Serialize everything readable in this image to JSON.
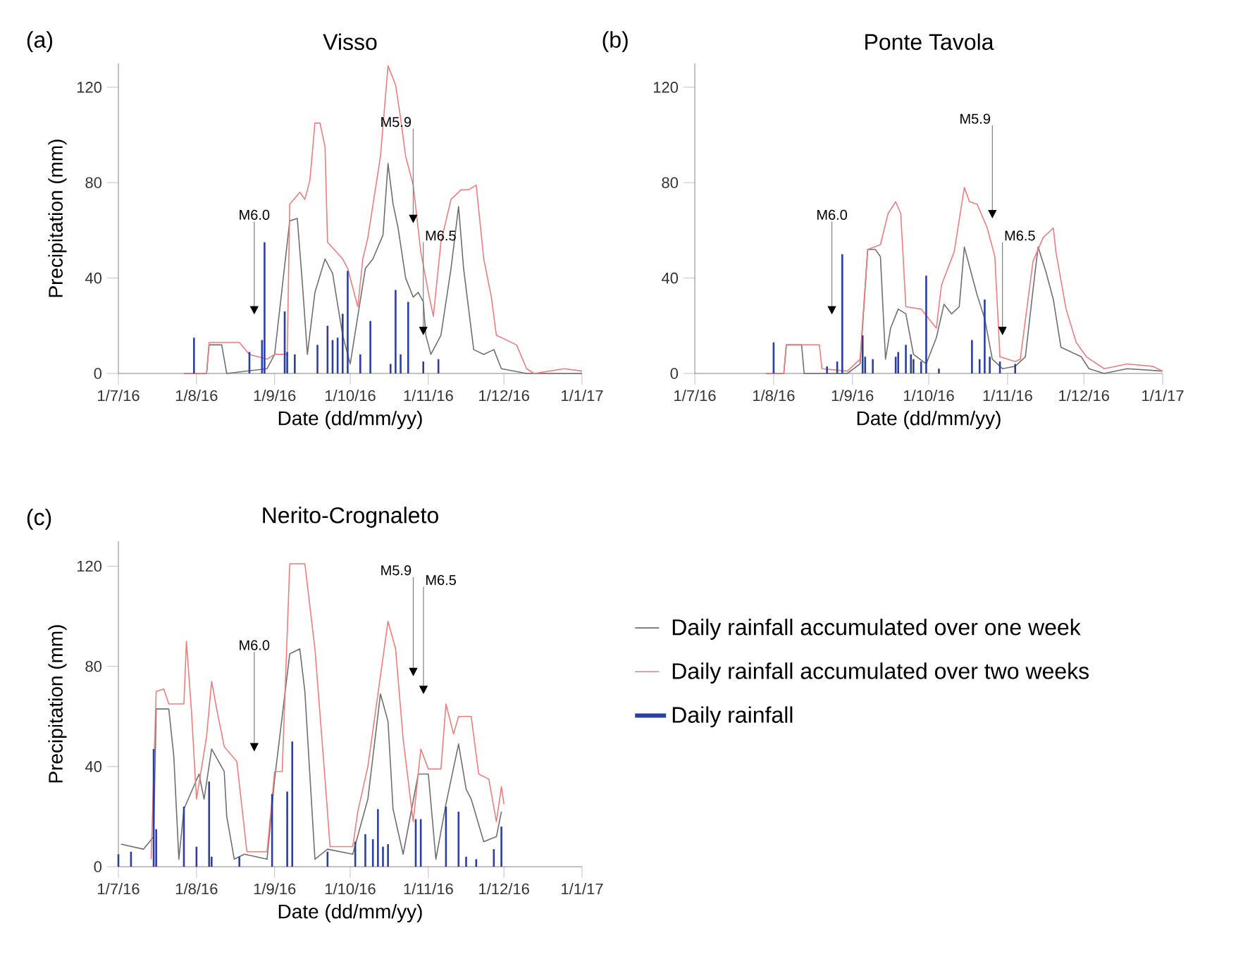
{
  "chart_data": [
    {
      "type": "line",
      "title": "Visso",
      "xlabel": "Date (dd/mm/yy)",
      "ylabel": "Precipitation (mm)",
      "annotations": [
        "(a)",
        "M6.0",
        {
          "text": "M5.9",
          "x": "2016-10-26",
          "y": 63
        },
        {
          "text": "M6.5",
          "x": "2016-10-30",
          "y": 16
        }
      ],
      "xlim": [
        "2016-07-01",
        "2017-01-01"
      ],
      "ylim": [
        0,
        130
      ],
      "yticks": [
        0,
        40,
        80,
        120
      ],
      "xticks": [
        {
          "value": "2016-07-01",
          "label": "1/7/16"
        },
        {
          "value": "2016-08-01",
          "label": "1/8/16"
        },
        {
          "value": "2016-09-01",
          "label": "1/9/16"
        },
        {
          "value": "2016-10-01",
          "label": "1/10/16"
        },
        {
          "value": "2016-11-01",
          "label": "1/11/16"
        },
        {
          "value": "2016-12-01",
          "label": "1/12/16"
        },
        {
          "value": "2017-01-01",
          "label": "1/1/17"
        }
      ],
      "series": [
        {
          "color": "#707070",
          "x": [
            "2016-07-27",
            "2016-08-05",
            "2016-08-06",
            "2016-08-11",
            "2016-08-13",
            "2016-08-29",
            "2016-09-01",
            "2016-09-07",
            "2016-09-10",
            "2016-09-12",
            "2016-09-14",
            "2016-09-17",
            "2016-09-21",
            "2016-09-24",
            "2016-09-28",
            "2016-10-01",
            "2016-10-04",
            "2016-10-07",
            "2016-10-10",
            "2016-10-14",
            "2016-10-16",
            "2016-10-18",
            "2016-10-20",
            "2016-10-23",
            "2016-10-26",
            "2016-10-28",
            "2016-10-30",
            "2016-10-31",
            "2016-11-02",
            "2016-11-06",
            "2016-11-10",
            "2016-11-13",
            "2016-11-15",
            "2016-11-19",
            "2016-11-23",
            "2016-11-27",
            "2016-11-30",
            "2016-12-10",
            "2017-01-01"
          ],
          "values": [
            0,
            0,
            12,
            12,
            0,
            2,
            8,
            64,
            65,
            38,
            8,
            34,
            48,
            42,
            16,
            4,
            24,
            44,
            48,
            58,
            88,
            71,
            61,
            40,
            32,
            34,
            30,
            16,
            8,
            16,
            44,
            70,
            44,
            10,
            8,
            10,
            2,
            0,
            0
          ]
        },
        {
          "color": "#f07c7c",
          "x": [
            "2016-07-27",
            "2016-08-05",
            "2016-08-06",
            "2016-08-18",
            "2016-08-22",
            "2016-08-29",
            "2016-09-01",
            "2016-09-06",
            "2016-09-07",
            "2016-09-11",
            "2016-09-13",
            "2016-09-15",
            "2016-09-17",
            "2016-09-19",
            "2016-09-21",
            "2016-09-22",
            "2016-09-28",
            "2016-09-30",
            "2016-10-04",
            "2016-10-06",
            "2016-10-08",
            "2016-10-13",
            "2016-10-16",
            "2016-10-19",
            "2016-10-21",
            "2016-10-23",
            "2016-10-26",
            "2016-10-29",
            "2016-11-01",
            "2016-11-03",
            "2016-11-06",
            "2016-11-10",
            "2016-11-14",
            "2016-11-17",
            "2016-11-20",
            "2016-11-23",
            "2016-11-26",
            "2016-11-28",
            "2016-12-06",
            "2016-12-10",
            "2016-12-13",
            "2016-12-25",
            "2017-01-01"
          ],
          "values": [
            0,
            0,
            13,
            13,
            8,
            6,
            8,
            8,
            71,
            76,
            73,
            81,
            105,
            105,
            95,
            55,
            48,
            44,
            28,
            48,
            57,
            91,
            129,
            121,
            107,
            91,
            79,
            51,
            34,
            24,
            55,
            73,
            77,
            77,
            79,
            48,
            32,
            16,
            12,
            2,
            0,
            2,
            1
          ]
        },
        {
          "type": "bar",
          "color": "#2a3ea6",
          "x": [
            "2016-07-31",
            "2016-08-22",
            "2016-08-27",
            "2016-08-28",
            "2016-09-05",
            "2016-09-06",
            "2016-09-09",
            "2016-09-18",
            "2016-09-22",
            "2016-09-24",
            "2016-09-26",
            "2016-09-28",
            "2016-09-30",
            "2016-10-05",
            "2016-10-09",
            "2016-10-17",
            "2016-10-19",
            "2016-10-21",
            "2016-10-24",
            "2016-10-30",
            "2016-11-05"
          ],
          "values": [
            15,
            9,
            14,
            55,
            26,
            9,
            8,
            12,
            20,
            14,
            15,
            25,
            43,
            8,
            22,
            4,
            35,
            8,
            30,
            5,
            6
          ]
        }
      ]
    },
    {
      "type": "line",
      "title": "Ponte Tavola",
      "xlabel": "Date (dd/mm/yy)",
      "annotations": [
        "(b)",
        "M6.0",
        "M5.9",
        {
          "text": "M6.5",
          "x": "2016-10-30",
          "y": 16
        }
      ],
      "xlim": [
        "2016-07-01",
        "2017-01-01"
      ],
      "ylim": [
        0,
        130
      ],
      "yticks": [
        0,
        40,
        80,
        120
      ],
      "xticks": [
        {
          "value": "2016-07-01",
          "label": "1/7/16"
        },
        {
          "value": "2016-08-01",
          "label": "1/8/16"
        },
        {
          "value": "2016-09-01",
          "label": "1/9/16"
        },
        {
          "value": "2016-10-01",
          "label": "1/10/16"
        },
        {
          "value": "2016-11-01",
          "label": "1/11/16"
        },
        {
          "value": "2016-12-01",
          "label": "1/12/16"
        },
        {
          "value": "2017-01-01",
          "label": "1/1/17"
        }
      ],
      "series": [
        {
          "color": "#707070",
          "x": [
            "2016-07-29",
            "2016-08-05",
            "2016-08-06",
            "2016-08-12",
            "2016-08-13",
            "2016-08-30",
            "2016-09-04",
            "2016-09-07",
            "2016-09-10",
            "2016-09-12",
            "2016-09-14",
            "2016-09-16",
            "2016-09-19",
            "2016-09-22",
            "2016-09-25",
            "2016-09-30",
            "2016-10-04",
            "2016-10-07",
            "2016-10-10",
            "2016-10-13",
            "2016-10-15",
            "2016-10-18",
            "2016-10-20",
            "2016-10-23",
            "2016-10-26",
            "2016-10-30",
            "2016-11-04",
            "2016-11-08",
            "2016-11-11",
            "2016-11-13",
            "2016-11-16",
            "2016-11-19",
            "2016-11-22",
            "2016-11-26",
            "2016-11-30",
            "2016-12-03",
            "2016-12-09",
            "2016-12-18",
            "2017-01-01"
          ],
          "values": [
            0,
            0,
            12,
            12,
            0,
            0,
            4,
            52,
            52,
            49,
            6,
            19,
            27,
            25,
            8,
            4,
            15,
            29,
            25,
            28,
            53,
            41,
            33,
            23,
            6,
            2,
            3,
            7,
            35,
            53,
            43,
            31,
            11,
            9,
            7,
            2,
            0,
            2,
            1
          ]
        },
        {
          "color": "#f07c7c",
          "x": [
            "2016-07-29",
            "2016-08-05",
            "2016-08-06",
            "2016-08-19",
            "2016-08-20",
            "2016-08-30",
            "2016-09-04",
            "2016-09-07",
            "2016-09-12",
            "2016-09-15",
            "2016-09-18",
            "2016-09-20",
            "2016-09-22",
            "2016-09-28",
            "2016-10-01",
            "2016-10-04",
            "2016-10-06",
            "2016-10-11",
            "2016-10-15",
            "2016-10-17",
            "2016-10-20",
            "2016-10-24",
            "2016-10-27",
            "2016-10-29",
            "2016-11-04",
            "2016-11-06",
            "2016-11-11",
            "2016-11-15",
            "2016-11-19",
            "2016-11-20",
            "2016-11-24",
            "2016-11-28",
            "2016-12-02",
            "2016-12-09",
            "2016-12-18",
            "2016-12-28",
            "2017-01-01"
          ],
          "values": [
            0,
            0,
            12,
            12,
            2,
            1,
            6,
            52,
            54,
            67,
            72,
            67,
            28,
            27,
            23,
            19,
            37,
            51,
            78,
            72,
            71,
            61,
            49,
            7,
            5,
            6,
            47,
            57,
            61,
            51,
            27,
            13,
            7,
            2,
            4,
            3,
            1
          ]
        },
        {
          "type": "bar",
          "color": "#2a3ea6",
          "x": [
            "2016-08-01",
            "2016-08-22",
            "2016-08-26",
            "2016-08-28",
            "2016-09-05",
            "2016-09-06",
            "2016-09-09",
            "2016-09-18",
            "2016-09-19",
            "2016-09-22",
            "2016-09-24",
            "2016-09-25",
            "2016-09-28",
            "2016-09-30",
            "2016-10-05",
            "2016-10-18",
            "2016-10-21",
            "2016-10-23",
            "2016-10-25",
            "2016-10-29",
            "2016-11-04"
          ],
          "values": [
            13,
            3,
            5,
            50,
            16,
            7,
            6,
            7,
            9,
            12,
            8,
            6,
            5,
            41,
            2,
            14,
            6,
            31,
            7,
            5,
            4
          ]
        }
      ]
    },
    {
      "type": "line",
      "title": "Nerito-Crognaleto",
      "xlabel": "Date (dd/mm/yy)",
      "ylabel": "Precipitation (mm)",
      "legend": "right",
      "annotations": [
        "(c)",
        "M6.0",
        "M5.9",
        "M6.5"
      ],
      "xlim": [
        "2016-07-01",
        "2017-01-01"
      ],
      "ylim": [
        0,
        130
      ],
      "yticks": [
        0,
        40,
        80,
        120
      ],
      "xticks": [
        {
          "value": "2016-07-01",
          "label": "1/7/16"
        },
        {
          "value": "2016-08-01",
          "label": "1/8/16"
        },
        {
          "value": "2016-09-01",
          "label": "1/9/16"
        },
        {
          "value": "2016-10-01",
          "label": "1/10/16"
        },
        {
          "value": "2016-11-01",
          "label": "1/11/16"
        },
        {
          "value": "2016-12-01",
          "label": "1/12/16"
        },
        {
          "value": "2017-01-01",
          "label": "1/1/17"
        }
      ],
      "series": [
        {
          "name": "Daily rainfall accumulated over one week",
          "color": "#707070",
          "x": [
            "2016-07-02",
            "2016-07-11",
            "2016-07-15",
            "2016-07-16",
            "2016-07-21",
            "2016-07-23",
            "2016-07-25",
            "2016-07-27",
            "2016-08-02",
            "2016-08-04",
            "2016-08-07",
            "2016-08-12",
            "2016-08-13",
            "2016-08-16",
            "2016-08-20",
            "2016-08-29",
            "2016-09-01",
            "2016-09-07",
            "2016-09-11",
            "2016-09-13",
            "2016-09-17",
            "2016-09-22",
            "2016-10-02",
            "2016-10-08",
            "2016-10-13",
            "2016-10-16",
            "2016-10-18",
            "2016-10-22",
            "2016-10-28",
            "2016-11-01",
            "2016-11-04",
            "2016-11-08",
            "2016-11-13",
            "2016-11-16",
            "2016-11-18",
            "2016-11-23",
            "2016-11-28",
            "2016-11-30"
          ],
          "values": [
            9,
            7,
            12,
            63,
            63,
            44,
            3,
            23,
            37,
            27,
            47,
            38,
            20,
            3,
            5,
            3,
            35,
            85,
            87,
            70,
            3,
            7,
            5,
            27,
            69,
            58,
            23,
            5,
            37,
            37,
            3,
            25,
            49,
            31,
            27,
            10,
            12,
            22
          ]
        },
        {
          "name": "Daily rainfall accumulated over two weeks",
          "color": "#f07c7c",
          "x": [
            "2016-07-14",
            "2016-07-16",
            "2016-07-19",
            "2016-07-21",
            "2016-07-27",
            "2016-07-28",
            "2016-07-30",
            "2016-08-01",
            "2016-08-05",
            "2016-08-07",
            "2016-08-09",
            "2016-08-12",
            "2016-08-17",
            "2016-08-21",
            "2016-08-29",
            "2016-09-01",
            "2016-09-04",
            "2016-09-07",
            "2016-09-13",
            "2016-09-17",
            "2016-09-21",
            "2016-09-23",
            "2016-10-02",
            "2016-10-04",
            "2016-10-08",
            "2016-10-16",
            "2016-10-19",
            "2016-10-22",
            "2016-10-26",
            "2016-10-29",
            "2016-11-01",
            "2016-11-06",
            "2016-11-08",
            "2016-11-11",
            "2016-11-13",
            "2016-11-18",
            "2016-11-21",
            "2016-11-25",
            "2016-11-28",
            "2016-11-30",
            "2016-12-01"
          ],
          "values": [
            3,
            70,
            71,
            65,
            65,
            90,
            62,
            27,
            52,
            74,
            63,
            48,
            42,
            6,
            6,
            38,
            38,
            121,
            121,
            87,
            35,
            8,
            8,
            22,
            40,
            98,
            87,
            51,
            18,
            47,
            39,
            39,
            65,
            53,
            60,
            60,
            37,
            35,
            18,
            32,
            25
          ]
        },
        {
          "type": "bar",
          "name": "Daily rainfall",
          "color": "#2a3ea6",
          "x": [
            "2016-07-01",
            "2016-07-06",
            "2016-07-15",
            "2016-07-16",
            "2016-07-27",
            "2016-08-01",
            "2016-08-06",
            "2016-08-07",
            "2016-08-18",
            "2016-08-31",
            "2016-09-06",
            "2016-09-08",
            "2016-09-22",
            "2016-10-03",
            "2016-10-07",
            "2016-10-10",
            "2016-10-12",
            "2016-10-14",
            "2016-10-16",
            "2016-10-27",
            "2016-10-29",
            "2016-11-08",
            "2016-11-13",
            "2016-11-16",
            "2016-11-20",
            "2016-11-27",
            "2016-11-30"
          ],
          "values": [
            5,
            6,
            47,
            15,
            24,
            8,
            34,
            4,
            4,
            29,
            30,
            50,
            6,
            10,
            13,
            11,
            23,
            8,
            9,
            19,
            19,
            24,
            22,
            4,
            3,
            7,
            16
          ]
        }
      ]
    }
  ]
}
